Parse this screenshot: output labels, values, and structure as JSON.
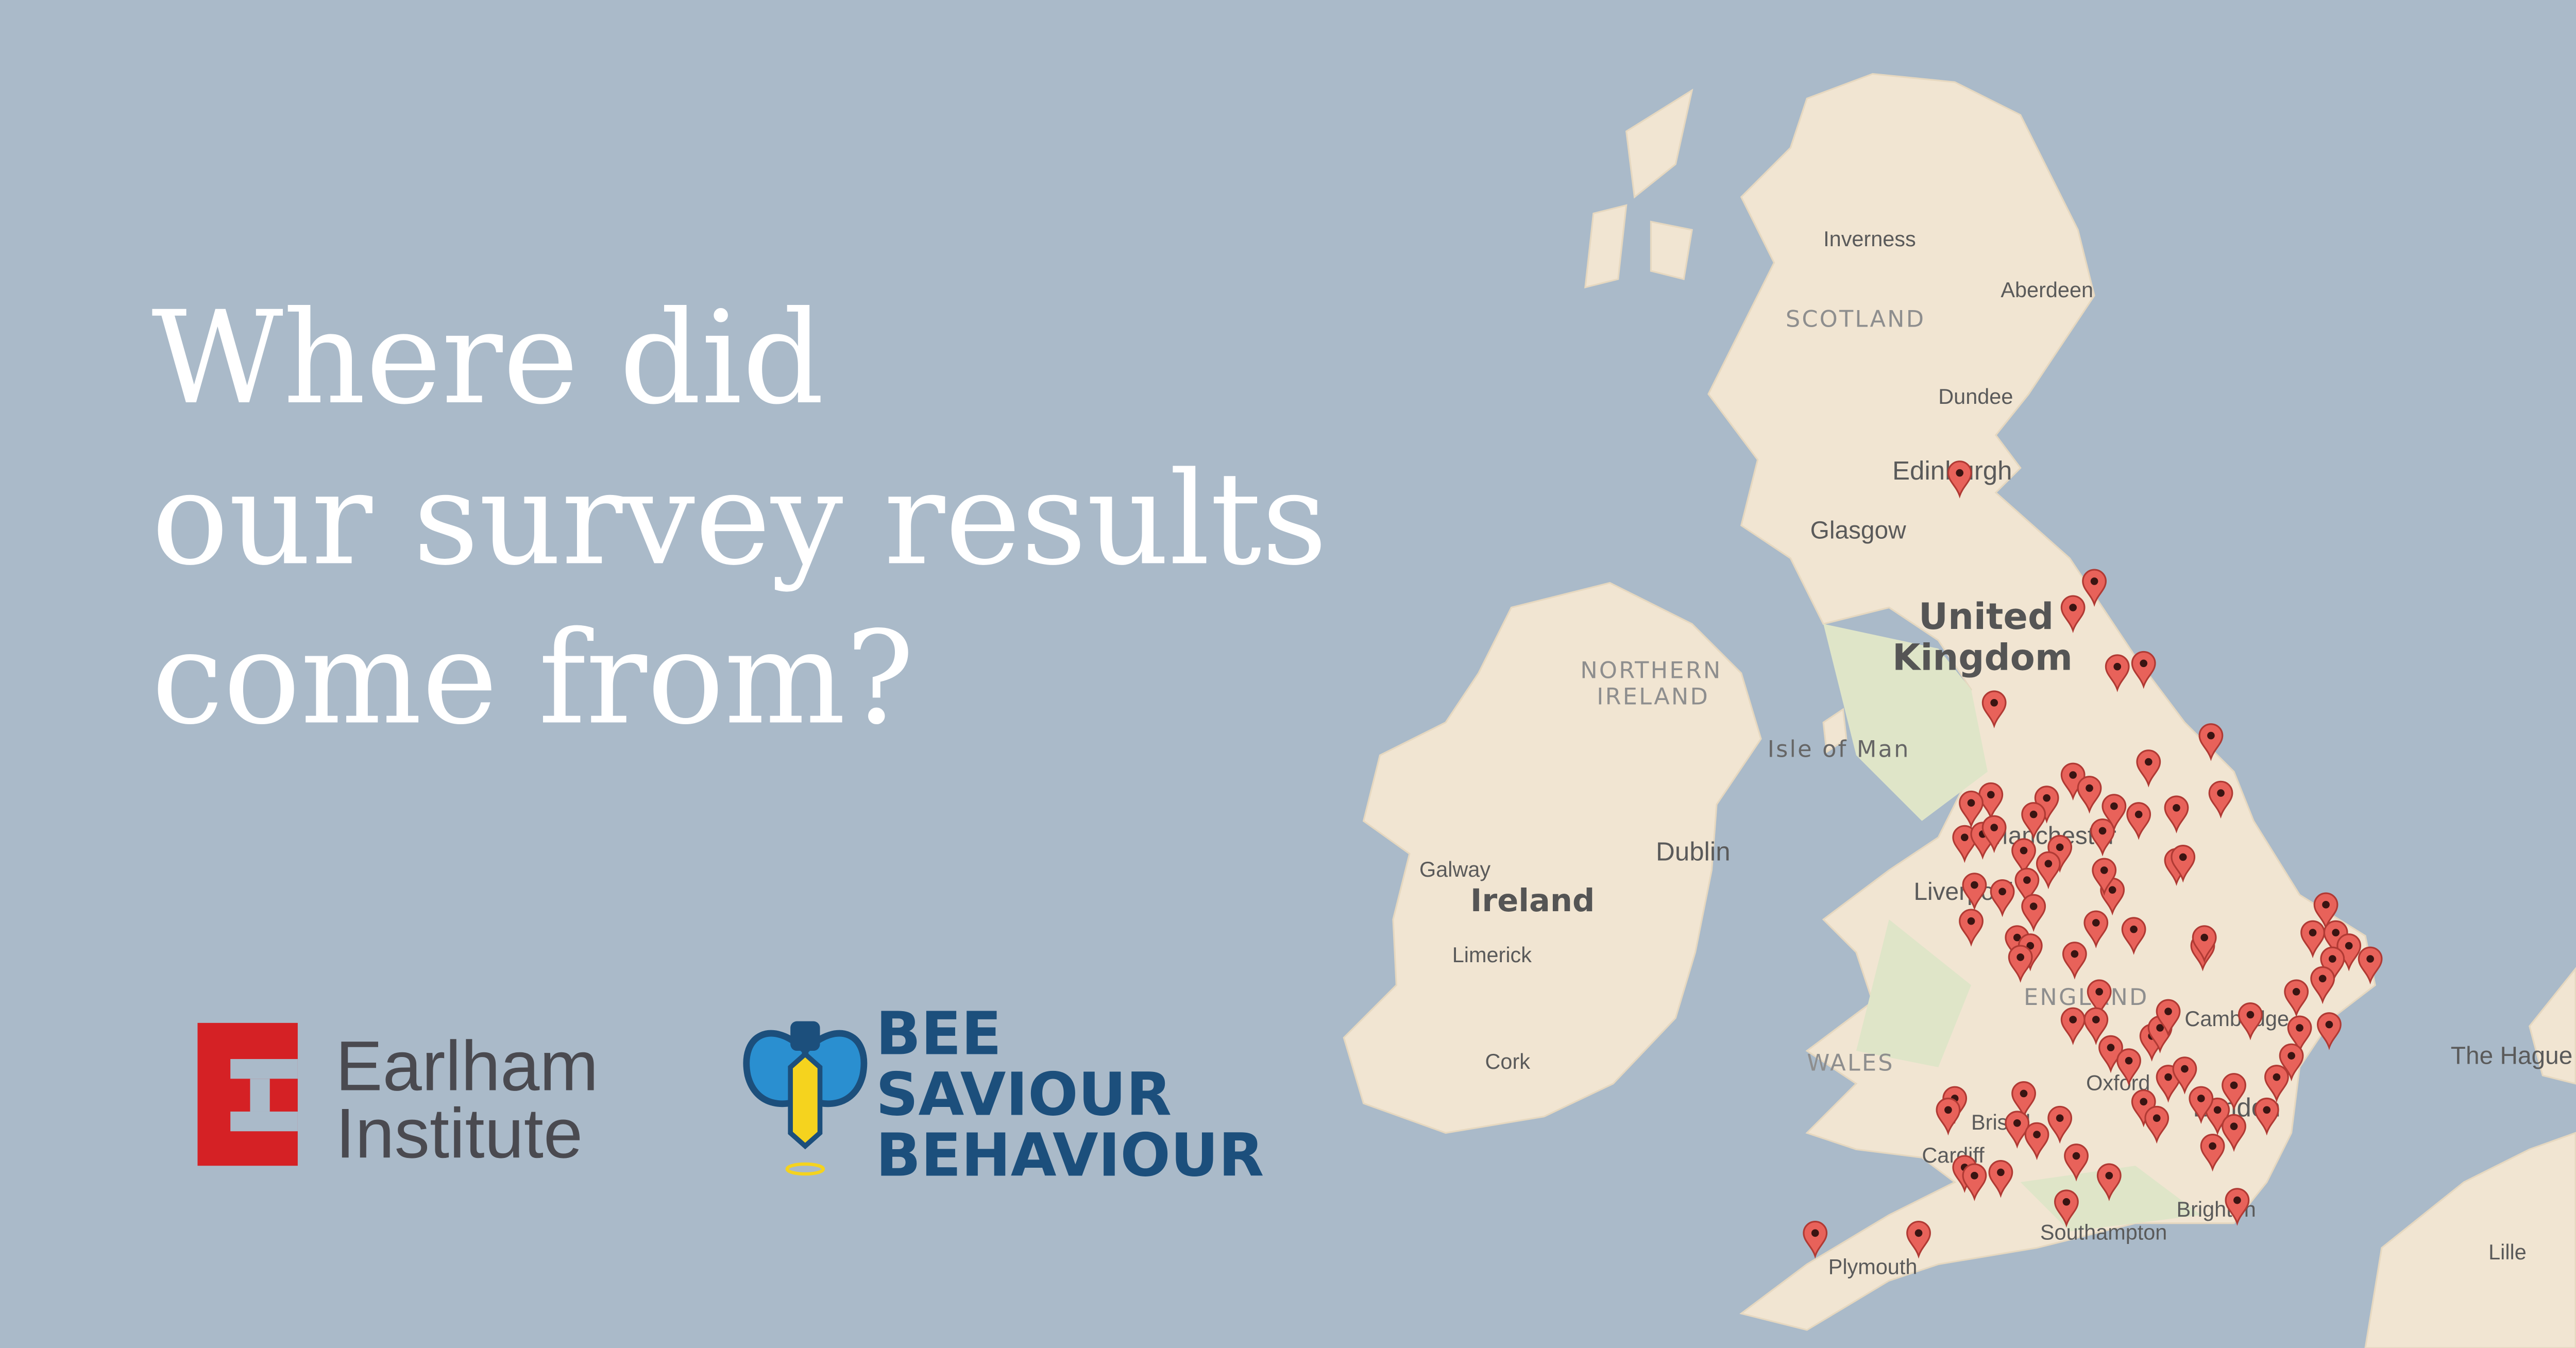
{
  "title": {
    "lines": [
      "Where did",
      "our survey results",
      "come from?"
    ]
  },
  "logos": {
    "earlham": [
      "Earlham",
      "Institute"
    ],
    "bee": [
      "BEE",
      "SAVIOUR",
      "BEHAVIOUR"
    ]
  },
  "map": {
    "labels": [
      "Inverness",
      "Aberdeen",
      "SCOTLAND",
      "Dundee",
      "Edinburgh",
      "Glasgow",
      "United",
      "Kingdom",
      "NORTHERN",
      "IRELAND",
      "Isle of Man",
      "Galway",
      "Ireland",
      "Dublin",
      "Limerick",
      "Cork",
      "Manchester",
      "Liverpool",
      "ENGLAND",
      "Cambridge",
      "WALES",
      "Oxford",
      "London",
      "Bristol",
      "Cardiff",
      "Southampton",
      "Brighton",
      "Plymouth",
      "The Hague",
      "Lille"
    ]
  }
}
